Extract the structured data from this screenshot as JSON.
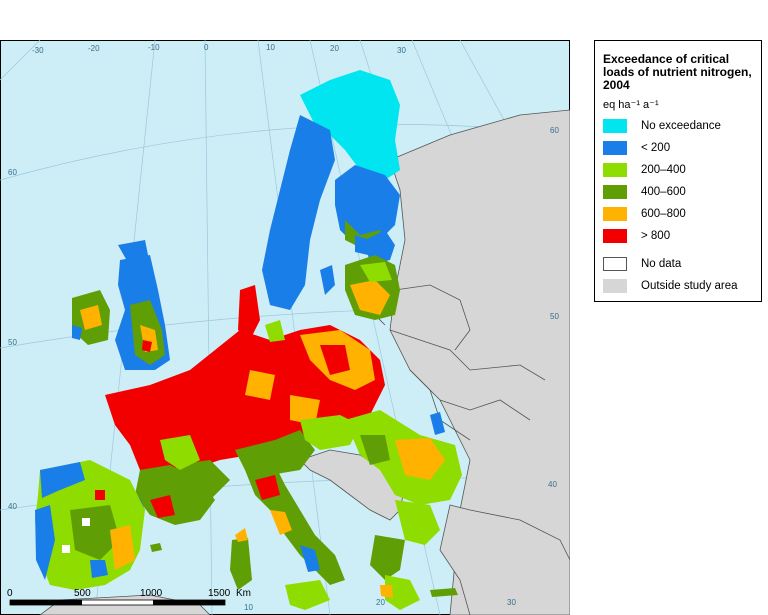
{
  "legend": {
    "title": "Exceedance of critical loads of nutrient nitrogen, 2004",
    "unit": "eq ha⁻¹ a⁻¹",
    "classes": [
      {
        "label": "No exceedance",
        "color": "#00e5f0"
      },
      {
        "label": "< 200",
        "color": "#1a7ee8"
      },
      {
        "label": "200–400",
        "color": "#8fdc00"
      },
      {
        "label": "400–600",
        "color": "#5f9e05"
      },
      {
        "label": "600–800",
        "color": "#ffb300"
      },
      {
        "label": "> 800",
        "color": "#f20000"
      }
    ],
    "extra": [
      {
        "label": "No data",
        "color": "#ffffff"
      },
      {
        "label": "Outside study area",
        "color": "#d6d6d6"
      }
    ]
  },
  "graticule_labels": {
    "top": [
      "-30",
      "-20",
      "-10",
      "0",
      "10",
      "20",
      "30"
    ],
    "right": [
      "60",
      "50",
      "40"
    ],
    "left": [
      "60",
      "50",
      "40"
    ],
    "bottom": [
      "10",
      "20",
      "30"
    ]
  },
  "scalebar": {
    "labels": [
      "0",
      "500",
      "1000",
      "1500"
    ],
    "unit": "Km"
  },
  "colors": {
    "sea": "#cdeef6",
    "outside": "#d6d6d6",
    "border": "#555555",
    "graticule": "#9cc8dc"
  }
}
